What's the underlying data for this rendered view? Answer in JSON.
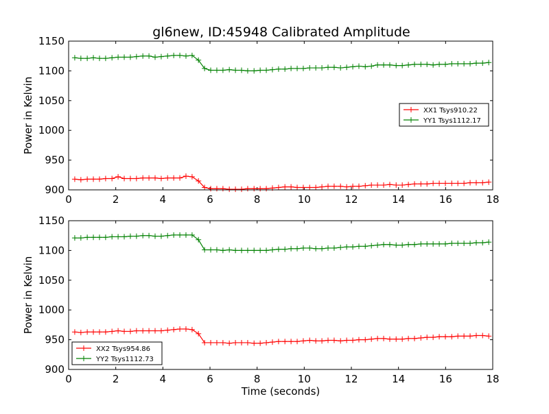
{
  "title": "gl6new, ID:45948 Calibrated Amplitude",
  "chart_data": [
    {
      "type": "line",
      "title": "gl6new, ID:45948 Calibrated Amplitude",
      "xlabel": "",
      "ylabel": "Power in Kelvin",
      "xlim": [
        0,
        18
      ],
      "ylim": [
        900,
        1150
      ],
      "xticks": [
        0,
        2,
        4,
        6,
        8,
        10,
        12,
        14,
        16,
        18
      ],
      "yticks": [
        900,
        950,
        1000,
        1050,
        1100,
        1150
      ],
      "legend": "center-right",
      "x": [
        0.26,
        0.52,
        0.79,
        1.05,
        1.31,
        1.57,
        1.84,
        2.1,
        2.36,
        2.62,
        2.88,
        3.15,
        3.41,
        3.67,
        3.93,
        4.2,
        4.46,
        4.72,
        4.98,
        5.24,
        5.51,
        5.77,
        6.03,
        6.29,
        6.55,
        6.82,
        7.08,
        7.34,
        7.6,
        7.87,
        8.13,
        8.39,
        8.65,
        8.91,
        9.18,
        9.44,
        9.7,
        9.96,
        10.23,
        10.49,
        10.75,
        11.01,
        11.27,
        11.54,
        11.8,
        12.06,
        12.32,
        12.59,
        12.85,
        13.11,
        13.37,
        13.63,
        13.9,
        14.16,
        14.42,
        14.68,
        14.95,
        15.21,
        15.47,
        15.73,
        15.99,
        16.26,
        16.52,
        16.78,
        17.04,
        17.3,
        17.57,
        17.83
      ],
      "series": [
        {
          "name": "XX1 Tsys910.22",
          "color": "#ff0000",
          "values": [
            918,
            917,
            918,
            918,
            918,
            919,
            919,
            922,
            919,
            919,
            919,
            920,
            920,
            920,
            919,
            920,
            920,
            920,
            923,
            922,
            915,
            904,
            902,
            902,
            902,
            901,
            901,
            901,
            902,
            902,
            902,
            902,
            903,
            904,
            905,
            905,
            904,
            904,
            904,
            904,
            905,
            906,
            906,
            906,
            905,
            906,
            906,
            907,
            908,
            908,
            908,
            909,
            908,
            908,
            909,
            910,
            910,
            910,
            911,
            911,
            911,
            911,
            911,
            911,
            912,
            912,
            912,
            913
          ]
        },
        {
          "name": "YY1 Tsys1112.17",
          "color": "#008000",
          "values": [
            1122,
            1121,
            1121,
            1122,
            1121,
            1121,
            1122,
            1123,
            1123,
            1123,
            1124,
            1125,
            1125,
            1123,
            1124,
            1125,
            1126,
            1126,
            1125,
            1126,
            1118,
            1104,
            1101,
            1101,
            1101,
            1102,
            1101,
            1101,
            1100,
            1100,
            1101,
            1101,
            1102,
            1103,
            1103,
            1104,
            1104,
            1104,
            1105,
            1105,
            1105,
            1106,
            1106,
            1105,
            1106,
            1107,
            1108,
            1107,
            1108,
            1110,
            1110,
            1110,
            1109,
            1109,
            1110,
            1111,
            1111,
            1111,
            1110,
            1111,
            1111,
            1112,
            1112,
            1112,
            1112,
            1113,
            1113,
            1114
          ]
        }
      ]
    },
    {
      "type": "line",
      "title": "",
      "xlabel": "Time (seconds)",
      "ylabel": "Power in Kelvin",
      "xlim": [
        0,
        18
      ],
      "ylim": [
        900,
        1150
      ],
      "xticks": [
        0,
        2,
        4,
        6,
        8,
        10,
        12,
        14,
        16,
        18
      ],
      "yticks": [
        900,
        950,
        1000,
        1050,
        1100,
        1150
      ],
      "legend": "bottom-left",
      "x": [
        0.26,
        0.52,
        0.79,
        1.05,
        1.31,
        1.57,
        1.84,
        2.1,
        2.36,
        2.62,
        2.88,
        3.15,
        3.41,
        3.67,
        3.93,
        4.2,
        4.46,
        4.72,
        4.98,
        5.24,
        5.51,
        5.77,
        6.03,
        6.29,
        6.55,
        6.82,
        7.08,
        7.34,
        7.6,
        7.87,
        8.13,
        8.39,
        8.65,
        8.91,
        9.18,
        9.44,
        9.7,
        9.96,
        10.23,
        10.49,
        10.75,
        11.01,
        11.27,
        11.54,
        11.8,
        12.06,
        12.32,
        12.59,
        12.85,
        13.11,
        13.37,
        13.63,
        13.9,
        14.16,
        14.42,
        14.68,
        14.95,
        15.21,
        15.47,
        15.73,
        15.99,
        16.26,
        16.52,
        16.78,
        17.04,
        17.3,
        17.57,
        17.83
      ],
      "series": [
        {
          "name": "XX2 Tsys954.86",
          "color": "#ff0000",
          "values": [
            963,
            962,
            963,
            963,
            963,
            963,
            964,
            965,
            964,
            964,
            965,
            965,
            965,
            965,
            965,
            966,
            967,
            968,
            968,
            967,
            960,
            945,
            945,
            945,
            945,
            944,
            945,
            945,
            945,
            944,
            944,
            945,
            946,
            947,
            947,
            947,
            947,
            948,
            949,
            948,
            948,
            949,
            949,
            948,
            949,
            949,
            950,
            950,
            951,
            952,
            952,
            951,
            951,
            951,
            952,
            952,
            953,
            954,
            954,
            955,
            955,
            955,
            956,
            956,
            956,
            957,
            957,
            956
          ]
        },
        {
          "name": "YY2 Tsys1112.73",
          "color": "#008000",
          "values": [
            1121,
            1121,
            1122,
            1122,
            1122,
            1122,
            1123,
            1123,
            1123,
            1124,
            1124,
            1125,
            1125,
            1124,
            1124,
            1125,
            1126,
            1126,
            1126,
            1126,
            1118,
            1101,
            1101,
            1101,
            1100,
            1101,
            1100,
            1100,
            1100,
            1100,
            1100,
            1100,
            1101,
            1102,
            1102,
            1103,
            1103,
            1104,
            1104,
            1103,
            1103,
            1104,
            1104,
            1105,
            1106,
            1106,
            1107,
            1107,
            1108,
            1109,
            1110,
            1110,
            1109,
            1109,
            1110,
            1110,
            1111,
            1111,
            1111,
            1111,
            1111,
            1112,
            1112,
            1112,
            1112,
            1113,
            1113,
            1114
          ]
        }
      ]
    }
  ]
}
